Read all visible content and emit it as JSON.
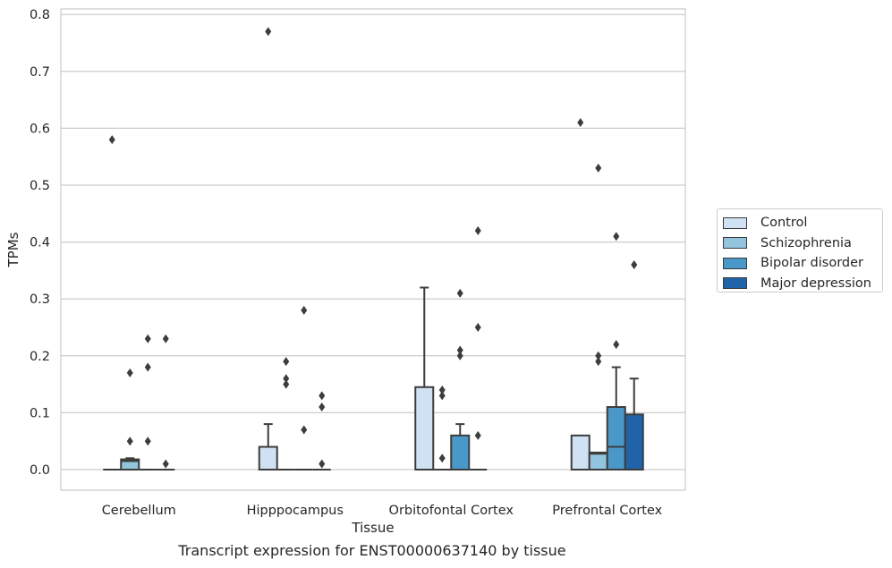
{
  "chart_data": {
    "type": "boxplot",
    "xlabel": "Tissue",
    "ylabel": "TPMs",
    "ylim": [
      -0.04,
      0.81
    ],
    "yticks": [
      0.0,
      0.1,
      0.2,
      0.3,
      0.4,
      0.5,
      0.6,
      0.7,
      0.8
    ],
    "ytick_labels": [
      "0.0",
      "0.1",
      "0.2",
      "0.3",
      "0.4",
      "0.5",
      "0.6",
      "0.7",
      "0.8"
    ],
    "grid": "horizontal",
    "legend_position": "right",
    "categories": [
      "Cerebellum",
      "Hipppocampus",
      "Orbitofontal Cortex",
      "Prefrontal Cortex"
    ],
    "series": [
      {
        "name": "Control",
        "color": "#cfe1f2",
        "boxes": [
          {
            "q1": 0,
            "median": 0,
            "q3": 0,
            "whislo": 0,
            "whishi": 0,
            "fliers": [
              0.58
            ]
          },
          {
            "q1": 0,
            "median": 0,
            "q3": 0.04,
            "whislo": 0,
            "whishi": 0.08,
            "fliers": [
              0.77
            ]
          },
          {
            "q1": 0,
            "median": 0,
            "q3": 0.145,
            "whislo": 0,
            "whishi": 0.32,
            "fliers": []
          },
          {
            "q1": 0,
            "median": 0,
            "q3": 0.06,
            "whislo": 0,
            "whishi": 0.06,
            "fliers": [
              0.61
            ]
          }
        ]
      },
      {
        "name": "Schizophrenia",
        "color": "#93c4de",
        "boxes": [
          {
            "q1": 0,
            "median": 0.015,
            "q3": 0.018,
            "whislo": 0,
            "whishi": 0.02,
            "fliers": [
              0.05,
              0.17
            ]
          },
          {
            "q1": 0,
            "median": 0,
            "q3": 0,
            "whislo": 0,
            "whishi": 0,
            "fliers": [
              0.15,
              0.16,
              0.19
            ]
          },
          {
            "q1": 0,
            "median": 0,
            "q3": 0,
            "whislo": 0,
            "whishi": 0,
            "fliers": [
              0.02,
              0.13,
              0.14
            ]
          },
          {
            "q1": 0,
            "median": 0.028,
            "q3": 0.03,
            "whislo": 0,
            "whishi": 0.03,
            "fliers": [
              0.19,
              0.2,
              0.53
            ]
          }
        ]
      },
      {
        "name": "Bipolar disorder",
        "color": "#4a98c9",
        "boxes": [
          {
            "q1": 0,
            "median": 0,
            "q3": 0,
            "whislo": 0,
            "whishi": 0,
            "fliers": [
              0.05,
              0.18,
              0.23
            ]
          },
          {
            "q1": 0,
            "median": 0,
            "q3": 0,
            "whislo": 0,
            "whishi": 0,
            "fliers": [
              0.07,
              0.28
            ]
          },
          {
            "q1": 0,
            "median": 0,
            "q3": 0.06,
            "whislo": 0,
            "whishi": 0.08,
            "fliers": [
              0.2,
              0.21,
              0.31
            ]
          },
          {
            "q1": 0,
            "median": 0.04,
            "q3": 0.11,
            "whislo": 0,
            "whishi": 0.18,
            "fliers": [
              0.22,
              0.41
            ]
          }
        ]
      },
      {
        "name": "Major depression",
        "color": "#2163a8",
        "boxes": [
          {
            "q1": 0,
            "median": 0,
            "q3": 0,
            "whislo": 0,
            "whishi": 0,
            "fliers": [
              0.01,
              0.23
            ]
          },
          {
            "q1": 0,
            "median": 0,
            "q3": 0,
            "whislo": 0,
            "whishi": 0,
            "fliers": [
              0.01,
              0.11,
              0.13
            ]
          },
          {
            "q1": 0,
            "median": 0,
            "q3": 0,
            "whislo": 0,
            "whishi": 0,
            "fliers": [
              0.06,
              0.25,
              0.42
            ]
          },
          {
            "q1": 0,
            "median": 0,
            "q3": 0.097,
            "whislo": 0,
            "whishi": 0.16,
            "fliers": [
              0.36
            ]
          }
        ]
      }
    ]
  },
  "caption": "Transcript expression for ENST00000637140 by tissue"
}
